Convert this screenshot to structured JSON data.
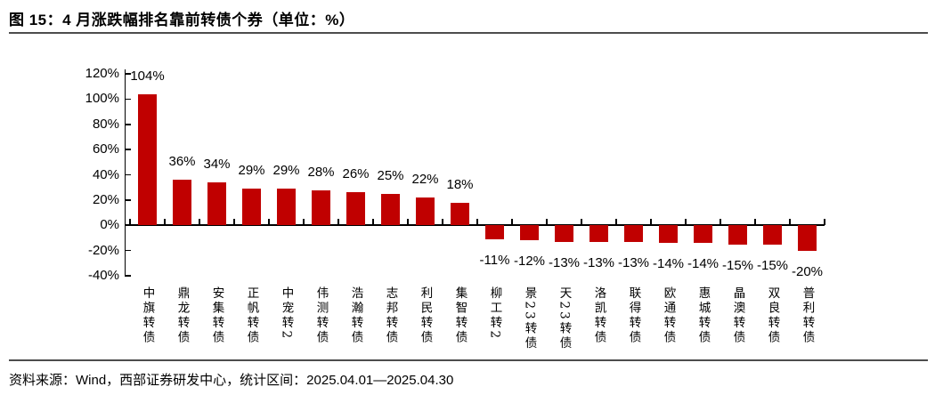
{
  "title": "图 15：4 月涨跌幅排名靠前转债个券（单位：%）",
  "footer": "资料来源：Wind，西部证券研发中心，统计区间：2025.04.01—2025.04.30",
  "colors": {
    "bar": "#c00000",
    "axis": "#000000",
    "divider": "#4d4d4d",
    "text": "#000000",
    "background": "#ffffff"
  },
  "chart_data": {
    "type": "bar",
    "title": "图 15：4 月涨跌幅排名靠前转债个券（单位：%）",
    "unit": "%",
    "categories": [
      "中旗转债",
      "鼎龙转债",
      "安集转债",
      "正帆转债",
      "中宠转2",
      "伟测转债",
      "浩瀚转债",
      "志邦转债",
      "利民转债",
      "集智转债",
      "柳工转2",
      "景23转债",
      "天23转债",
      "洛凯转债",
      "联得转债",
      "欧通转债",
      "惠城转债",
      "晶澳转债",
      "双良转债",
      "普利转债"
    ],
    "values": [
      104,
      36,
      34,
      29,
      29,
      28,
      26,
      25,
      22,
      18,
      -11,
      -12,
      -13,
      -13,
      -13,
      -14,
      -14,
      -15,
      -15,
      -20
    ],
    "data_labels": [
      "104%",
      "36%",
      "34%",
      "29%",
      "29%",
      "28%",
      "26%",
      "25%",
      "22%",
      "18%",
      "-11%",
      "-12%",
      "-13%",
      "-13%",
      "-13%",
      "-14%",
      "-14%",
      "-15%",
      "-15%",
      "-20%"
    ],
    "yticks": [
      120,
      100,
      80,
      60,
      40,
      20,
      0,
      -20,
      -40
    ],
    "ytick_labels": [
      "120%",
      "100%",
      "80%",
      "60%",
      "40%",
      "20%",
      "0%",
      "-20%",
      "-40%"
    ],
    "ylim": [
      -40,
      120
    ],
    "xlabel": "",
    "ylabel": "",
    "grid": false,
    "legend": null,
    "bar_color": "#c00000"
  }
}
